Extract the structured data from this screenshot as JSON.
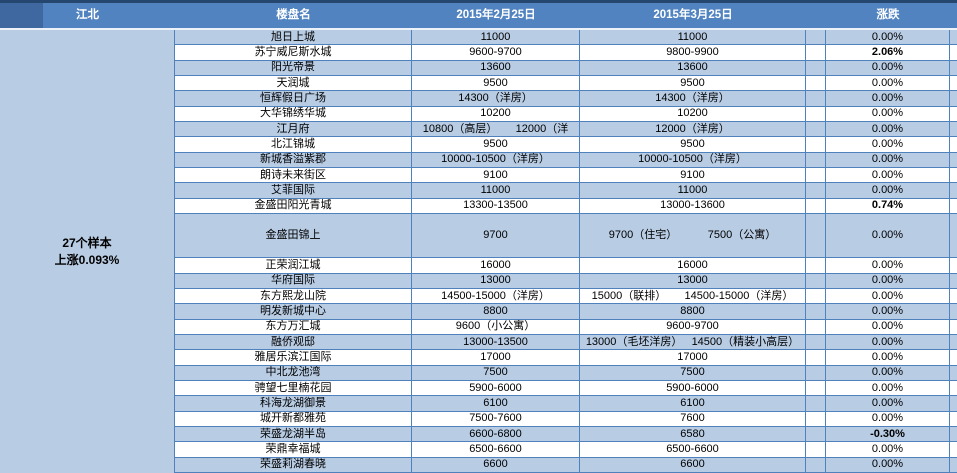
{
  "header": {
    "region_label": "江北",
    "name_col": "楼盘名",
    "feb_col": "2015年2月25日",
    "mar_col": "2015年3月25日",
    "change_col": "涨跌"
  },
  "summary": {
    "line1": "27个样本",
    "line2": "上涨0.093%"
  },
  "colors": {
    "header_bg": "#5183c0",
    "header_dark_block": "#3f67a0",
    "header_top_line": "#24466f",
    "stripe_blue": "#b8cce4",
    "stripe_white": "#ffffff",
    "grid_border": "#4f81bd",
    "header_text": "#ffffff",
    "body_text": "#000000"
  },
  "rows": [
    {
      "name": "旭日上城",
      "feb": "11000",
      "mar": "11000",
      "change": "0.00%",
      "bold": false,
      "tall": false
    },
    {
      "name": "苏宁威尼斯水城",
      "feb": "9600-9700",
      "mar": "9800-9900",
      "change": "2.06%",
      "bold": true,
      "tall": false
    },
    {
      "name": "阳光帝景",
      "feb": "13600",
      "mar": "13600",
      "change": "0.00%",
      "bold": false,
      "tall": false
    },
    {
      "name": "天润城",
      "feb": "9500",
      "mar": "9500",
      "change": "0.00%",
      "bold": false,
      "tall": false
    },
    {
      "name": "恒辉假日广场",
      "feb": "14300（洋房）",
      "mar": "14300（洋房）",
      "change": "0.00%",
      "bold": false,
      "tall": false
    },
    {
      "name": "大华锦绣华城",
      "feb": "10200",
      "mar": "10200",
      "change": "0.00%",
      "bold": false,
      "tall": false
    },
    {
      "name": "江月府",
      "feb": "10800（高层）      12000（洋",
      "mar": "12000（洋房）",
      "change": "0.00%",
      "bold": false,
      "tall": false
    },
    {
      "name": "北江锦城",
      "feb": "9500",
      "mar": "9500",
      "change": "0.00%",
      "bold": false,
      "tall": false
    },
    {
      "name": "新城香溢紫郡",
      "feb": "10000-10500（洋房）",
      "mar": "10000-10500（洋房）",
      "change": "0.00%",
      "bold": false,
      "tall": false
    },
    {
      "name": "朗诗未来街区",
      "feb": "9100",
      "mar": "9100",
      "change": "0.00%",
      "bold": false,
      "tall": false
    },
    {
      "name": "艾菲国际",
      "feb": "11000",
      "mar": "11000",
      "change": "0.00%",
      "bold": false,
      "tall": false
    },
    {
      "name": "金盛田阳光青城",
      "feb": "13300-13500",
      "mar": "13000-13600",
      "change": "0.74%",
      "bold": true,
      "tall": false
    },
    {
      "name": "金盛田锦上",
      "feb": "9700",
      "mar": "9700（住宅）          7500（公寓）",
      "change": "0.00%",
      "bold": false,
      "tall": true
    },
    {
      "name": "正荣润江城",
      "feb": "16000",
      "mar": "16000",
      "change": "0.00%",
      "bold": false,
      "tall": false
    },
    {
      "name": "华府国际",
      "feb": "13000",
      "mar": "13000",
      "change": "0.00%",
      "bold": false,
      "tall": false
    },
    {
      "name": "东方熙龙山院",
      "feb": "14500-15000（洋房）",
      "mar": "15000（联排）      14500-15000（洋房）",
      "change": "0.00%",
      "bold": false,
      "tall": false
    },
    {
      "name": "明发新城中心",
      "feb": "8800",
      "mar": "8800",
      "change": "0.00%",
      "bold": false,
      "tall": false
    },
    {
      "name": "东方万汇城",
      "feb": "9600（小公寓）",
      "mar": "9600-9700",
      "change": "0.00%",
      "bold": false,
      "tall": false
    },
    {
      "name": "融侨观邸",
      "feb": "13000-13500",
      "mar": "13000（毛坯洋房）   14500（精装小高层）",
      "change": "0.00%",
      "bold": false,
      "tall": false
    },
    {
      "name": "雅居乐滨江国际",
      "feb": "17000",
      "mar": "17000",
      "change": "0.00%",
      "bold": false,
      "tall": false
    },
    {
      "name": "中北龙池湾",
      "feb": "7500",
      "mar": "7500",
      "change": "0.00%",
      "bold": false,
      "tall": false
    },
    {
      "name": "骋望七里楠花园",
      "feb": "5900-6000",
      "mar": "5900-6000",
      "change": "0.00%",
      "bold": false,
      "tall": false
    },
    {
      "name": "科海龙湖御景",
      "feb": "6100",
      "mar": "6100",
      "change": "0.00%",
      "bold": false,
      "tall": false
    },
    {
      "name": "城开新都雅苑",
      "feb": "7500-7600",
      "mar": "7600",
      "change": "0.00%",
      "bold": false,
      "tall": false
    },
    {
      "name": "荣盛龙湖半岛",
      "feb": "6600-6800",
      "mar": "6580",
      "change": "-0.30%",
      "bold": true,
      "tall": false
    },
    {
      "name": "荣鼎幸福城",
      "feb": "6500-6600",
      "mar": "6500-6600",
      "change": "0.00%",
      "bold": false,
      "tall": false
    },
    {
      "name": "荣盛莉湖春晓",
      "feb": "6600",
      "mar": "6600",
      "change": "0.00%",
      "bold": false,
      "tall": false
    }
  ]
}
